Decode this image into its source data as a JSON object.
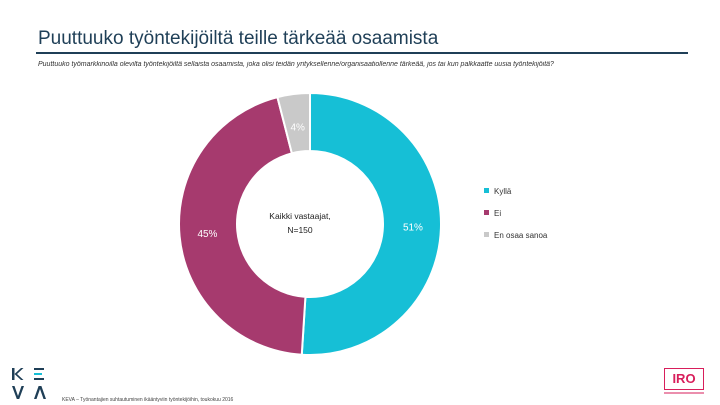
{
  "title": "Puuttuuko työntekijöiltä teille tärkeää osaamista",
  "subtitle": "Puuttuuko työmarkkinoilla olevilta työntekijöiltä sellaista osaamista, joka olisi teidän yrityksellenne/organisaatiollenne tärkeää, jos tai kun palkkaatte uusia työntekijöitä?",
  "footer": "KEVA – Työnantajien suhtautuminen ikääntyviin työntekijöihin, toukokuu 2016",
  "logos": {
    "left": "KEVA",
    "right": "IRO"
  },
  "chart_data": {
    "type": "pie",
    "variant": "donut",
    "center_label": "Kaikki vastaajat, N=150",
    "center_line1": "Kaikki vastaajat,",
    "center_line2": "N=150",
    "legend_position": "right",
    "unit": "%",
    "slices": [
      {
        "label": "Kyllä",
        "value": 51,
        "color": "#16bfd6",
        "value_label": "51%"
      },
      {
        "label": "Ei",
        "value": 45,
        "color": "#a63a6e",
        "value_label": "45%"
      },
      {
        "label": "En osaa sanoa",
        "value": 4,
        "color": "#c9c9c9",
        "value_label": "4%"
      }
    ]
  }
}
